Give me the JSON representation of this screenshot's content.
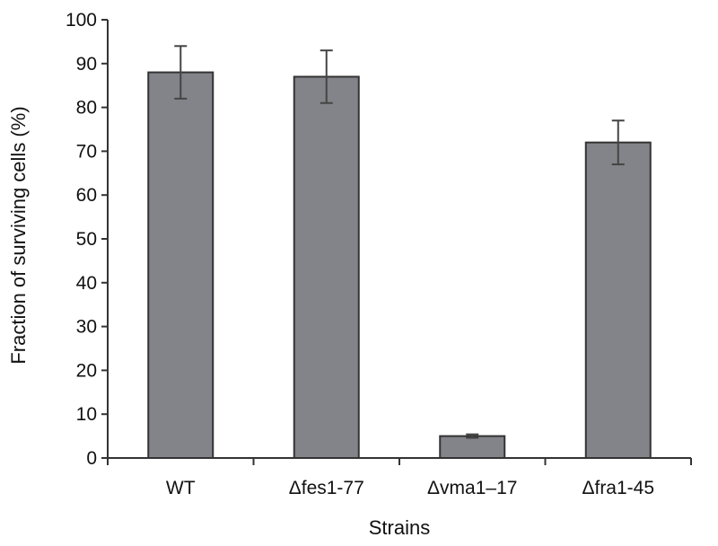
{
  "chart_data": {
    "type": "bar",
    "title": "",
    "xlabel": "Strains",
    "ylabel": "Fraction of surviving cells (%)",
    "categories": [
      "WT",
      "Δfes1-77",
      "Δvma1–17",
      "Δfra1-45"
    ],
    "values": [
      88,
      87,
      5,
      72
    ],
    "errors": [
      6,
      6,
      0.4,
      5
    ],
    "ylim": [
      0,
      100
    ],
    "yticks": [
      0,
      10,
      20,
      30,
      40,
      50,
      60,
      70,
      80,
      90,
      100
    ],
    "grid": false,
    "legend": "none",
    "bar_color": "#838489"
  }
}
